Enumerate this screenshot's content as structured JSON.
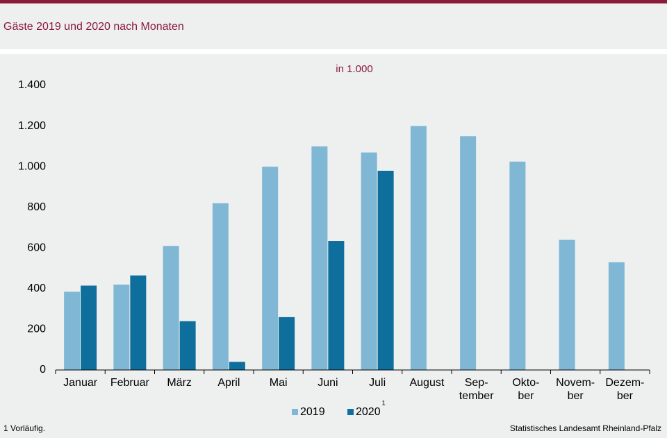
{
  "chart_data": {
    "type": "bar",
    "title": "Gäste 2019 und 2020 nach Monaten",
    "subtitle": "in 1.000",
    "categories": [
      "Januar",
      "Februar",
      "März",
      "April",
      "Mai",
      "Juni",
      "Juli",
      "August",
      "Sep-\ntember",
      "Okto-\nber",
      "Novem-\nber",
      "Dezem-\nber"
    ],
    "series": [
      {
        "name": "2019",
        "color": "#7fb7d4",
        "values": [
          385,
          420,
          610,
          820,
          1000,
          1100,
          1070,
          1200,
          1150,
          1025,
          640,
          530
        ]
      },
      {
        "name": "2020",
        "color": "#0e6f9c",
        "values": [
          415,
          465,
          240,
          40,
          260,
          635,
          980,
          null,
          null,
          null,
          null,
          null
        ],
        "note_marker": "1"
      }
    ],
    "ylim": [
      0,
      1400
    ],
    "yticks": [
      0,
      200,
      400,
      600,
      800,
      {
        "value": 1000,
        "label": "1.000"
      },
      {
        "value": 1200,
        "label": "1.200"
      },
      {
        "value": 1400,
        "label": "1.400"
      }
    ],
    "footnote": "1 Vorläufig.",
    "source": "Statistisches Landesamt Rheinland-Pfalz"
  }
}
